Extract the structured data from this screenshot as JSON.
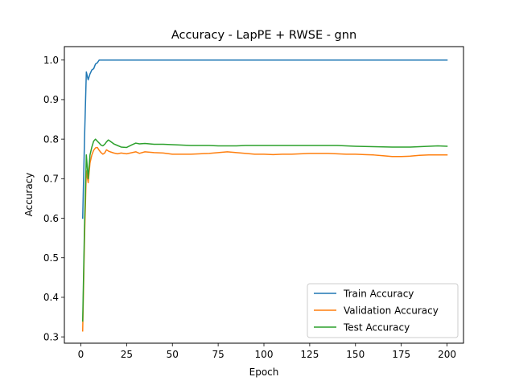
{
  "chart_data": {
    "type": "line",
    "title": "Accuracy - LapPE + RWSE - gnn",
    "xlabel": "Epoch",
    "ylabel": "Accuracy",
    "xlim": [
      -9,
      209
    ],
    "ylim": [
      0.284,
      1.034
    ],
    "x_ticks": [
      0,
      25,
      50,
      75,
      100,
      125,
      150,
      175,
      200
    ],
    "y_ticks": [
      0.3,
      0.4,
      0.5,
      0.6,
      0.7,
      0.8,
      0.9,
      1.0
    ],
    "x_tick_labels": [
      "0",
      "25",
      "50",
      "75",
      "100",
      "125",
      "150",
      "175",
      "200"
    ],
    "y_tick_labels": [
      "0.3",
      "0.4",
      "0.5",
      "0.6",
      "0.7",
      "0.8",
      "0.9",
      "1.0"
    ],
    "grid": false,
    "legend_position": "lower-right",
    "series": [
      {
        "name": "Train Accuracy",
        "color": "#1f77b4",
        "points": [
          [
            1,
            0.6
          ],
          [
            2,
            0.8
          ],
          [
            3,
            0.97
          ],
          [
            4,
            0.95
          ],
          [
            5,
            0.965
          ],
          [
            6,
            0.975
          ],
          [
            7,
            0.978
          ],
          [
            8,
            0.99
          ],
          [
            9,
            0.993
          ],
          [
            10,
            1.0
          ],
          [
            200,
            1.0
          ]
        ]
      },
      {
        "name": "Validation Accuracy",
        "color": "#ff7f0e",
        "points": [
          [
            1,
            0.315
          ],
          [
            2,
            0.55
          ],
          [
            3,
            0.72
          ],
          [
            4,
            0.69
          ],
          [
            5,
            0.74
          ],
          [
            6,
            0.76
          ],
          [
            7,
            0.772
          ],
          [
            8,
            0.778
          ],
          [
            9,
            0.779
          ],
          [
            10,
            0.772
          ],
          [
            11,
            0.766
          ],
          [
            12,
            0.762
          ],
          [
            13,
            0.765
          ],
          [
            14,
            0.773
          ],
          [
            15,
            0.77
          ],
          [
            16,
            0.768
          ],
          [
            18,
            0.765
          ],
          [
            20,
            0.763
          ],
          [
            22,
            0.765
          ],
          [
            25,
            0.763
          ],
          [
            28,
            0.766
          ],
          [
            30,
            0.768
          ],
          [
            32,
            0.764
          ],
          [
            35,
            0.768
          ],
          [
            40,
            0.766
          ],
          [
            45,
            0.765
          ],
          [
            50,
            0.762
          ],
          [
            60,
            0.762
          ],
          [
            65,
            0.763
          ],
          [
            70,
            0.764
          ],
          [
            75,
            0.766
          ],
          [
            80,
            0.768
          ],
          [
            85,
            0.766
          ],
          [
            90,
            0.764
          ],
          [
            95,
            0.762
          ],
          [
            100,
            0.762
          ],
          [
            105,
            0.761
          ],
          [
            110,
            0.762
          ],
          [
            115,
            0.762
          ],
          [
            120,
            0.763
          ],
          [
            125,
            0.764
          ],
          [
            130,
            0.764
          ],
          [
            135,
            0.764
          ],
          [
            140,
            0.763
          ],
          [
            145,
            0.762
          ],
          [
            150,
            0.762
          ],
          [
            155,
            0.761
          ],
          [
            160,
            0.76
          ],
          [
            165,
            0.758
          ],
          [
            170,
            0.756
          ],
          [
            175,
            0.756
          ],
          [
            180,
            0.757
          ],
          [
            185,
            0.759
          ],
          [
            190,
            0.76
          ],
          [
            195,
            0.76
          ],
          [
            200,
            0.76
          ]
        ]
      },
      {
        "name": "Test Accuracy",
        "color": "#2ca02c",
        "points": [
          [
            1,
            0.34
          ],
          [
            2,
            0.58
          ],
          [
            3,
            0.76
          ],
          [
            4,
            0.7
          ],
          [
            5,
            0.76
          ],
          [
            6,
            0.78
          ],
          [
            7,
            0.795
          ],
          [
            8,
            0.8
          ],
          [
            9,
            0.795
          ],
          [
            10,
            0.79
          ],
          [
            11,
            0.785
          ],
          [
            12,
            0.783
          ],
          [
            13,
            0.787
          ],
          [
            14,
            0.793
          ],
          [
            15,
            0.798
          ],
          [
            16,
            0.795
          ],
          [
            18,
            0.788
          ],
          [
            20,
            0.784
          ],
          [
            22,
            0.78
          ],
          [
            25,
            0.779
          ],
          [
            28,
            0.786
          ],
          [
            30,
            0.79
          ],
          [
            32,
            0.788
          ],
          [
            35,
            0.789
          ],
          [
            40,
            0.787
          ],
          [
            45,
            0.787
          ],
          [
            50,
            0.786
          ],
          [
            55,
            0.785
          ],
          [
            60,
            0.784
          ],
          [
            65,
            0.784
          ],
          [
            70,
            0.784
          ],
          [
            75,
            0.783
          ],
          [
            80,
            0.783
          ],
          [
            85,
            0.783
          ],
          [
            90,
            0.784
          ],
          [
            95,
            0.784
          ],
          [
            100,
            0.784
          ],
          [
            110,
            0.784
          ],
          [
            120,
            0.784
          ],
          [
            130,
            0.784
          ],
          [
            140,
            0.784
          ],
          [
            145,
            0.783
          ],
          [
            150,
            0.782
          ],
          [
            160,
            0.781
          ],
          [
            170,
            0.78
          ],
          [
            175,
            0.78
          ],
          [
            180,
            0.78
          ],
          [
            185,
            0.781
          ],
          [
            190,
            0.782
          ],
          [
            195,
            0.783
          ],
          [
            200,
            0.782
          ]
        ]
      }
    ]
  }
}
